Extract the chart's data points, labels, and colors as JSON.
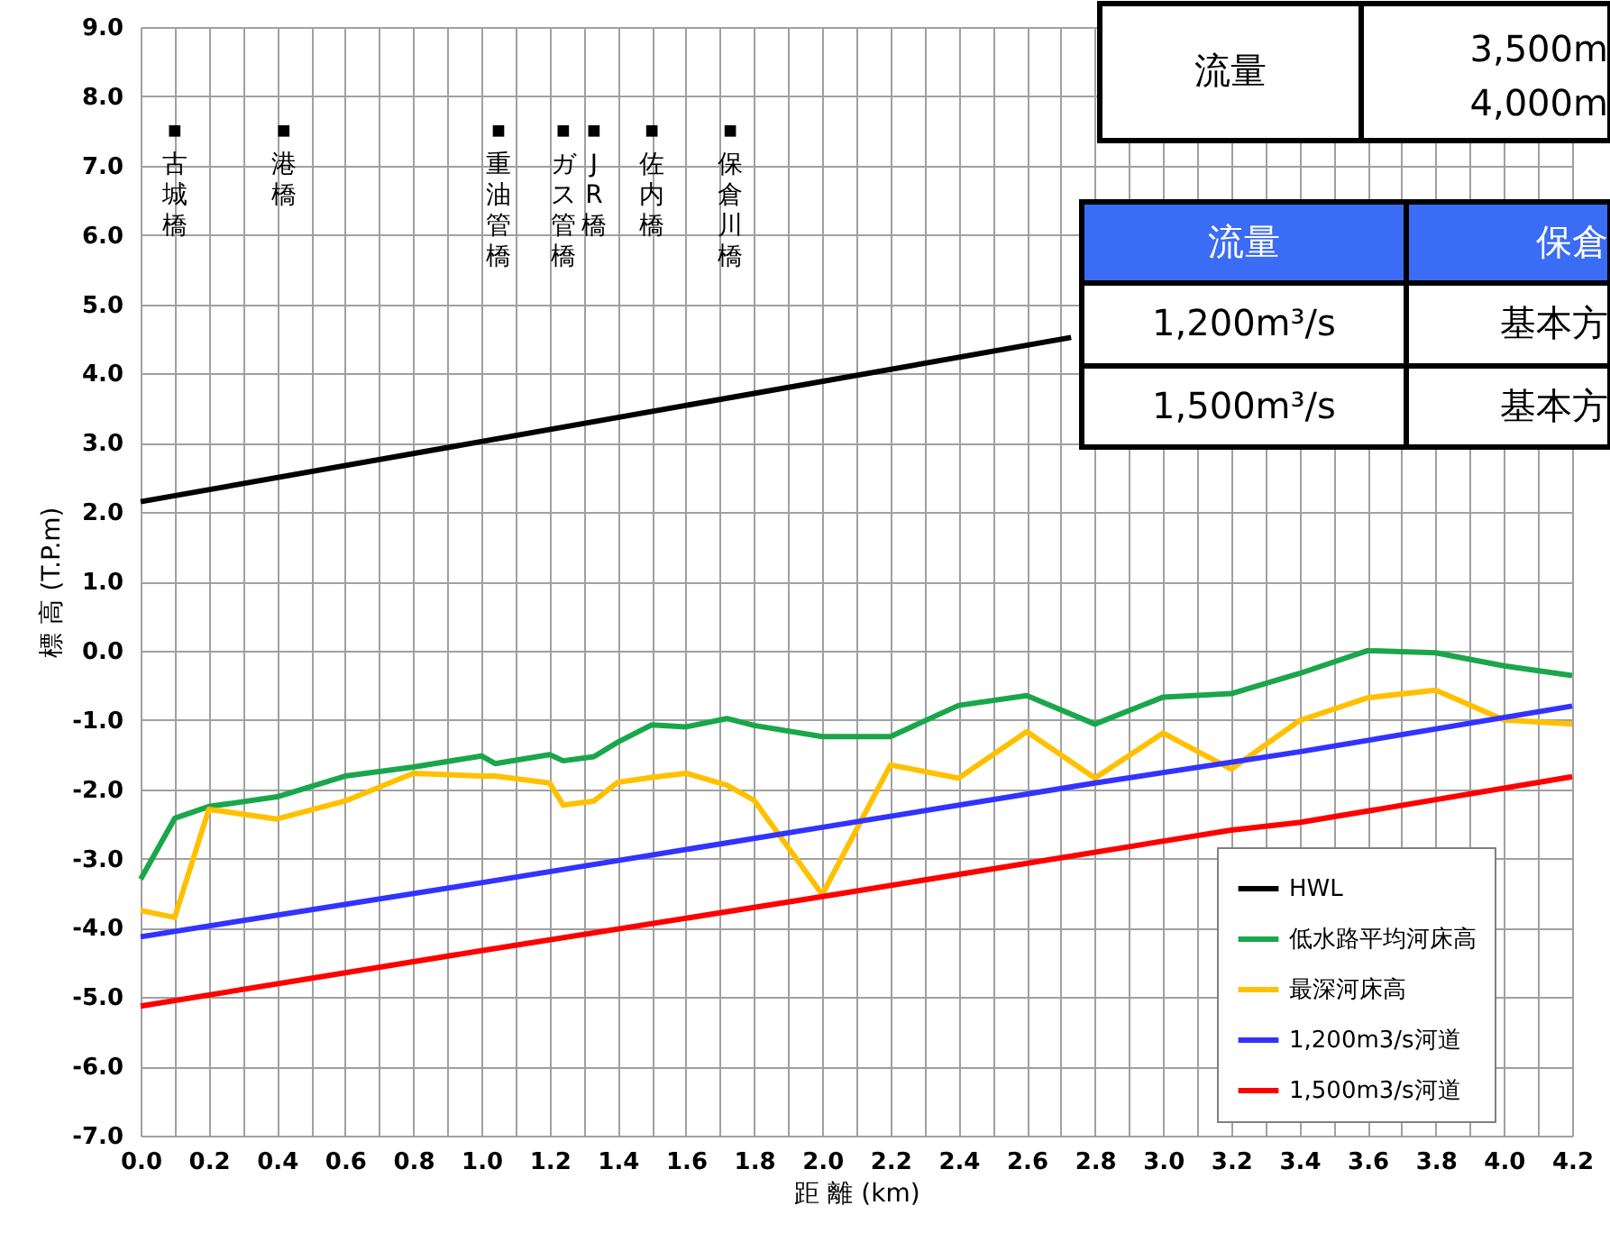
{
  "chart_data": {
    "type": "line",
    "xlabel": "距 離 (km)",
    "ylabel": "標 高 (T.P.m)",
    "xlim": [
      0,
      4.2
    ],
    "ylim": [
      -7,
      9
    ],
    "xticks": [
      {
        "value": 0,
        "label": "0.0"
      },
      {
        "value": 0.1,
        "label": null
      },
      0.2,
      {
        "value": 0.3,
        "label": null
      },
      0.4,
      {
        "value": 0.5,
        "label": null
      },
      0.6,
      {
        "value": 0.7,
        "label": null
      },
      0.8,
      {
        "value": 0.9,
        "label": null
      },
      {
        "value": 1,
        "label": "1.0"
      },
      {
        "value": 1.1,
        "label": null
      },
      1.2,
      {
        "value": 1.3,
        "label": null
      },
      1.4,
      {
        "value": 1.5,
        "label": null
      },
      1.6,
      {
        "value": 1.7,
        "label": null
      },
      1.8,
      {
        "value": 1.9,
        "label": null
      },
      {
        "value": 2,
        "label": "2.0"
      },
      {
        "value": 2.1,
        "label": null
      },
      2.2,
      {
        "value": 2.3,
        "label": null
      },
      2.4,
      {
        "value": 2.5,
        "label": null
      },
      2.6,
      {
        "value": 2.7,
        "label": null
      },
      2.8,
      {
        "value": 2.9,
        "label": null
      },
      {
        "value": 3,
        "label": "3.0"
      },
      {
        "value": 3.1,
        "label": null
      },
      3.2,
      {
        "value": 3.3,
        "label": null
      },
      3.4,
      {
        "value": 3.5,
        "label": null
      },
      3.6,
      {
        "value": 3.7,
        "label": null
      },
      3.8,
      {
        "value": 3.9,
        "label": null
      },
      {
        "value": 4,
        "label": "4.0"
      },
      {
        "value": 4.1,
        "label": null
      },
      4.2
    ],
    "yticks": [
      {
        "value": -7,
        "label": "-7.0"
      },
      {
        "value": -6,
        "label": "-6.0"
      },
      {
        "value": -5,
        "label": "-5.0"
      },
      {
        "value": -4,
        "label": "-4.0"
      },
      {
        "value": -3,
        "label": "-3.0"
      },
      {
        "value": -2,
        "label": "-2.0"
      },
      {
        "value": -1,
        "label": "-1.0"
      },
      {
        "value": 0,
        "label": "0.0"
      },
      {
        "value": 1,
        "label": "1.0"
      },
      {
        "value": 2,
        "label": "2.0"
      },
      {
        "value": 3,
        "label": "3.0"
      },
      {
        "value": 4,
        "label": "4.0"
      },
      {
        "value": 5,
        "label": "5.0"
      },
      {
        "value": 6,
        "label": "6.0"
      },
      {
        "value": 7,
        "label": "7.0"
      },
      {
        "value": 8,
        "label": "8.0"
      },
      {
        "value": 9,
        "label": "9.0"
      }
    ],
    "grid": true,
    "legend": "bottom right",
    "line_style": "solid",
    "marker": "none",
    "series": [
      {
        "name": "HWL",
        "color": "#000000",
        "x": [
          0,
          2.73
        ],
        "values": [
          2.15,
          4.52
        ]
      },
      {
        "name": "低水路平均河床高",
        "color": "#1aa64a",
        "x": [
          0,
          0.1,
          0.2,
          0.4,
          0.6,
          0.8,
          1.0,
          1.04,
          1.2,
          1.24,
          1.33,
          1.4,
          1.5,
          1.6,
          1.72,
          1.8,
          2.0,
          2.2,
          2.4,
          2.6,
          2.8,
          3.0,
          3.2,
          3.4,
          3.6,
          3.8,
          4.0,
          4.2
        ],
        "values": [
          -3.3,
          -2.42,
          -2.25,
          -2.11,
          -1.81,
          -1.68,
          -1.52,
          -1.63,
          -1.5,
          -1.59,
          -1.53,
          -1.32,
          -1.07,
          -1.1,
          -0.98,
          -1.08,
          -1.24,
          -1.24,
          -0.79,
          -0.65,
          -1.06,
          -0.67,
          -0.62,
          -0.33,
          0.0,
          -0.03,
          -0.22,
          -0.36
        ]
      },
      {
        "name": "最深河床高",
        "color": "#ffc000",
        "x": [
          0,
          0.1,
          0.2,
          0.4,
          0.6,
          0.8,
          1.0,
          1.04,
          1.2,
          1.24,
          1.33,
          1.4,
          1.5,
          1.6,
          1.72,
          1.8,
          2.0,
          2.2,
          2.4,
          2.6,
          2.8,
          3.0,
          3.2,
          3.4,
          3.6,
          3.8,
          4.0,
          4.2
        ],
        "values": [
          -3.75,
          -3.85,
          -2.29,
          -2.43,
          -2.17,
          -1.77,
          -1.81,
          -1.81,
          -1.91,
          -2.23,
          -2.17,
          -1.9,
          -1.83,
          -1.77,
          -1.94,
          -2.16,
          -3.52,
          -1.65,
          -1.84,
          -1.17,
          -1.84,
          -1.19,
          -1.71,
          -1.01,
          -0.68,
          -0.57,
          -1.0,
          -1.06
        ]
      },
      {
        "name": "1,200m3/s河道",
        "color": "#3333ff",
        "x": [
          0,
          1.0,
          2.0,
          2.8,
          3.4,
          4.2
        ],
        "values": [
          -4.13,
          -3.35,
          -2.55,
          -1.91,
          -1.46,
          -0.8
        ]
      },
      {
        "name": "1,500m3/s河道",
        "color": "#ff0000",
        "x": [
          0,
          1.0,
          2.0,
          3.2,
          3.4,
          4.2
        ],
        "values": [
          -5.13,
          -4.33,
          -3.55,
          -2.59,
          -2.48,
          -1.82
        ]
      },
      {
        "type": "scatter",
        "marker": "square",
        "color": "#000000",
        "x": [
          0.1,
          0.42,
          1.05,
          1.24,
          1.33,
          1.5,
          1.73
        ],
        "values": [
          7.5,
          7.5,
          7.5,
          7.5,
          7.5,
          7.5,
          7.5
        ]
      }
    ],
    "annotations": [
      {
        "text": "古城橋",
        "x": 0.1,
        "y": 7.5
      },
      {
        "text": "港橋",
        "x": 0.42,
        "y": 7.5
      },
      {
        "text": "重油管橋",
        "x": 1.05,
        "y": 7.5
      },
      {
        "text": "ガス管橋",
        "x": 1.24,
        "y": 7.5
      },
      {
        "text": "JR橋",
        "x": 1.33,
        "y": 7.5
      },
      {
        "text": "佐内橋",
        "x": 1.5,
        "y": 7.5
      },
      {
        "text": "保倉川橋",
        "x": 1.73,
        "y": 7.5
      },
      "流量",
      "3,500m",
      "4,000m",
      "流量",
      "保倉",
      "1,200m³/s",
      "基本方",
      "1,500m³/s",
      "基本方"
    ]
  }
}
